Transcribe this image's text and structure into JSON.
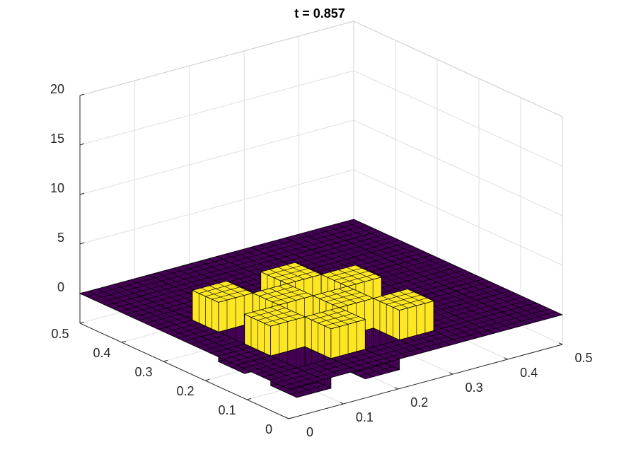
{
  "chart_data": {
    "type": "surface",
    "title": "t = 0.857",
    "x": [
      0,
      0.0625,
      0.125,
      0.1875,
      0.25,
      0.3125,
      0.375,
      0.4375,
      0.5
    ],
    "y": [
      0,
      0.0625,
      0.125,
      0.1875,
      0.25,
      0.3125,
      0.375,
      0.4375,
      0.5
    ],
    "z": [
      [
        0,
        0,
        0,
        0,
        0,
        0,
        0,
        0
      ],
      [
        0,
        -3,
        3,
        -3,
        3,
        0,
        0,
        0
      ],
      [
        0,
        3,
        -3,
        3,
        -3,
        0,
        0,
        0
      ],
      [
        0,
        -3,
        3,
        -3,
        3,
        0,
        0,
        0
      ],
      [
        0,
        3,
        -3,
        3,
        -3,
        0,
        0,
        0
      ],
      [
        0,
        0,
        0,
        0,
        0,
        0,
        0,
        0
      ],
      [
        0,
        0,
        0,
        0,
        0,
        0,
        0,
        0
      ],
      [
        0,
        0,
        0,
        0,
        0,
        0,
        0,
        0
      ]
    ],
    "xlim": [
      0,
      0.5
    ],
    "ylim": [
      0,
      0.5
    ],
    "zlim": [
      -3,
      20
    ],
    "xticks": [
      0,
      0.1,
      0.2,
      0.3,
      0.4,
      0.5
    ],
    "yticks": [
      0,
      0.1,
      0.2,
      0.3,
      0.4,
      0.5
    ],
    "zticks": [
      0,
      5,
      10,
      15,
      20
    ],
    "colormap": [
      "#440154",
      "#fde725"
    ],
    "edgecolor": "#000000",
    "grid": true
  }
}
